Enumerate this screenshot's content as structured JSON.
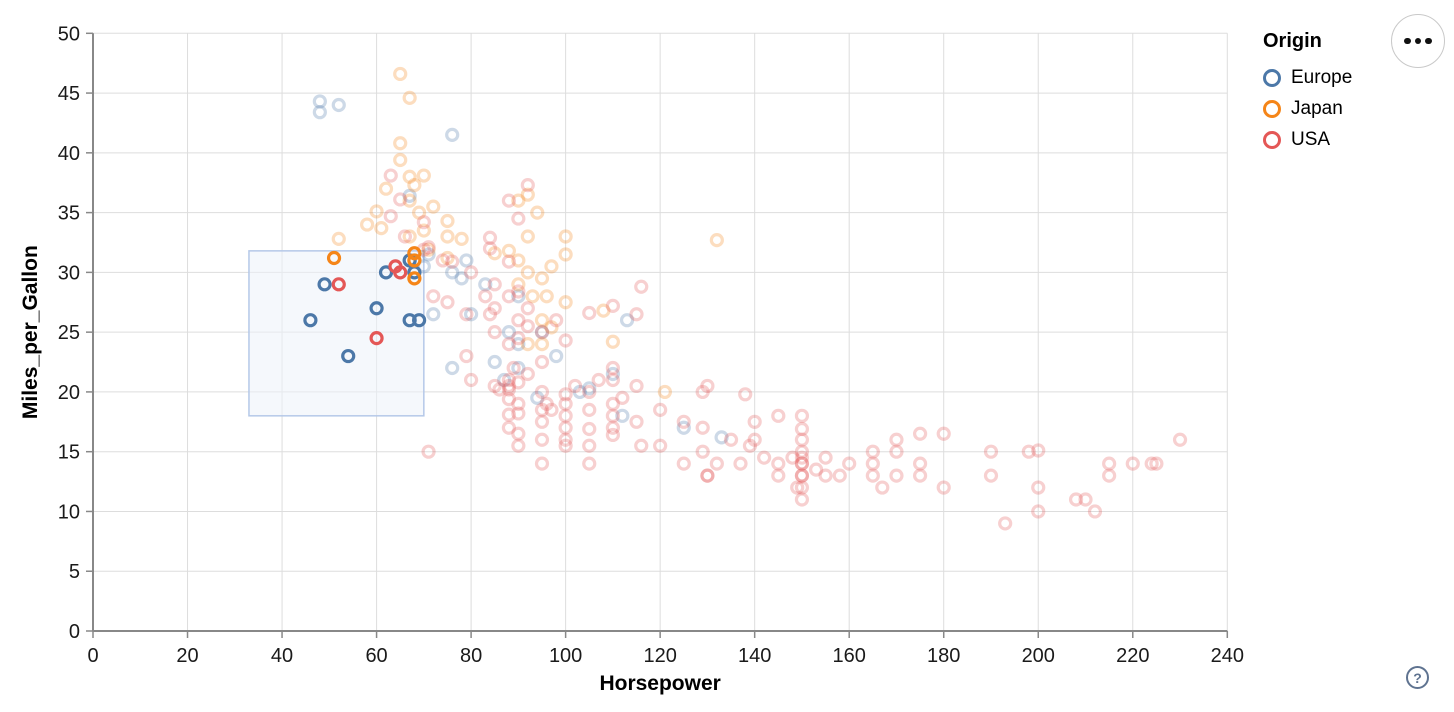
{
  "ui": {
    "actions_button": {
      "icon": "ellipsis-menu"
    },
    "help_button": {
      "glyph": "?"
    }
  },
  "chart_data": {
    "type": "scatter",
    "title": "",
    "xlabel": "Horsepower",
    "ylabel": "Miles_per_Gallon",
    "xlim": [
      0,
      240
    ],
    "ylim": [
      0,
      50
    ],
    "x_ticks": [
      0,
      20,
      40,
      60,
      80,
      100,
      120,
      140,
      160,
      180,
      200,
      220,
      240
    ],
    "y_ticks": [
      0,
      5,
      10,
      15,
      20,
      25,
      30,
      35,
      40,
      45,
      50
    ],
    "grid": true,
    "marker": "open-circle",
    "legend": {
      "title": "Origin",
      "position": "top-right",
      "entries": [
        {
          "label": "Europe",
          "color": "#4c78a8"
        },
        {
          "label": "Japan",
          "color": "#f58518"
        },
        {
          "label": "USA",
          "color": "#e45756"
        }
      ]
    },
    "brush_selection": {
      "horsepower": [
        33,
        70
      ],
      "mpg": [
        18,
        31.8
      ],
      "fill": "#edf2fa",
      "fill_opacity": 0.55,
      "border": "#b5c8e8"
    },
    "point_opacity": {
      "selected": 1,
      "unselected": 0.28
    },
    "colors": {
      "grid": "#dddddd",
      "axis": "#888888",
      "tick_label": "#1a1a1a",
      "axis_title": "#000000"
    },
    "series": [
      {
        "name": "Europe",
        "color": "#4c78a8",
        "selected": [
          [
            46,
            26
          ],
          [
            49,
            29
          ],
          [
            54,
            23
          ],
          [
            60,
            27
          ],
          [
            62,
            30
          ],
          [
            67,
            31
          ],
          [
            68,
            30
          ],
          [
            67,
            26
          ],
          [
            69,
            26
          ]
        ],
        "unselected": [
          [
            48,
            44.3
          ],
          [
            48,
            43.4
          ],
          [
            52,
            44
          ],
          [
            76,
            41.5
          ],
          [
            67,
            36.4
          ],
          [
            71,
            31.5
          ],
          [
            70,
            30.5
          ],
          [
            78,
            29.5
          ],
          [
            83,
            29
          ],
          [
            79,
            31
          ],
          [
            88,
            25
          ],
          [
            90,
            24
          ],
          [
            95,
            25
          ],
          [
            113,
            26
          ],
          [
            90,
            28
          ],
          [
            76,
            30
          ],
          [
            112,
            18
          ],
          [
            76,
            22
          ],
          [
            87,
            21
          ],
          [
            90,
            22
          ],
          [
            110,
            21.5
          ],
          [
            125,
            17
          ],
          [
            133,
            16.2
          ],
          [
            103,
            20
          ],
          [
            98,
            23
          ],
          [
            80,
            26.5
          ],
          [
            72,
            26.5
          ],
          [
            94,
            19.5
          ],
          [
            85,
            22.5
          ],
          [
            105,
            20.3
          ]
        ]
      },
      {
        "name": "Japan",
        "color": "#f58518",
        "selected": [
          [
            51,
            31.2
          ],
          [
            68,
            31.6
          ],
          [
            68,
            31
          ],
          [
            68,
            29.5
          ]
        ],
        "unselected": [
          [
            65,
            46.6
          ],
          [
            67,
            44.6
          ],
          [
            65,
            40.8
          ],
          [
            52,
            32.8
          ],
          [
            60,
            35.1
          ],
          [
            58,
            34
          ],
          [
            61,
            33.7
          ],
          [
            67,
            38
          ],
          [
            62,
            37
          ],
          [
            68,
            37.3
          ],
          [
            65,
            39.4
          ],
          [
            70,
            38.1
          ],
          [
            67,
            36
          ],
          [
            69,
            35
          ],
          [
            72,
            35.5
          ],
          [
            75,
            34.3
          ],
          [
            70,
            33.5
          ],
          [
            67,
            33
          ],
          [
            78,
            32.8
          ],
          [
            75,
            33
          ],
          [
            92,
            33
          ],
          [
            100,
            33
          ],
          [
            132,
            32.7
          ],
          [
            88,
            31.8
          ],
          [
            85,
            31.6
          ],
          [
            90,
            31
          ],
          [
            92,
            30
          ],
          [
            97,
            30.5
          ],
          [
            95,
            29.5
          ],
          [
            90,
            29
          ],
          [
            93,
            28
          ],
          [
            100,
            27.5
          ],
          [
            108,
            26.8
          ],
          [
            95,
            26
          ],
          [
            97,
            25.4
          ],
          [
            110,
            24.2
          ],
          [
            95,
            24
          ],
          [
            92,
            24
          ],
          [
            96,
            28
          ],
          [
            100,
            31.5
          ],
          [
            90,
            36
          ],
          [
            92,
            36.5
          ],
          [
            94,
            35
          ],
          [
            75,
            31.2
          ],
          [
            71,
            31.9
          ],
          [
            121,
            20
          ]
        ]
      },
      {
        "name": "USA",
        "color": "#e45756",
        "selected": [
          [
            52,
            29
          ],
          [
            60,
            24.5
          ],
          [
            64,
            30.5
          ],
          [
            65,
            30
          ]
        ],
        "unselected": [
          [
            63,
            38.1
          ],
          [
            65,
            36.1
          ],
          [
            70,
            34.2
          ],
          [
            84,
            32.9
          ],
          [
            90,
            34.5
          ],
          [
            88,
            36
          ],
          [
            92,
            37.3
          ],
          [
            63,
            34.7
          ],
          [
            66,
            33
          ],
          [
            70,
            31.9
          ],
          [
            76,
            30.9
          ],
          [
            84,
            32
          ],
          [
            74,
            31
          ],
          [
            80,
            30
          ],
          [
            71,
            32.1
          ],
          [
            72,
            28
          ],
          [
            75,
            27.5
          ],
          [
            79,
            26.5
          ],
          [
            83,
            28
          ],
          [
            85,
            29
          ],
          [
            88,
            30.9
          ],
          [
            88,
            28
          ],
          [
            85,
            27
          ],
          [
            90,
            28.4
          ],
          [
            92,
            27
          ],
          [
            90,
            26
          ],
          [
            84,
            26.5
          ],
          [
            85,
            25
          ],
          [
            88,
            24
          ],
          [
            90,
            24.5
          ],
          [
            92,
            25.5
          ],
          [
            95,
            25
          ],
          [
            98,
            26
          ],
          [
            100,
            24.3
          ],
          [
            105,
            26.6
          ],
          [
            110,
            27.2
          ],
          [
            116,
            28.8
          ],
          [
            115,
            26.5
          ],
          [
            79,
            23
          ],
          [
            80,
            21
          ],
          [
            85,
            20.5
          ],
          [
            86,
            20.2
          ],
          [
            88,
            21
          ],
          [
            88,
            20.5
          ],
          [
            88,
            20.2
          ],
          [
            88,
            19.4
          ],
          [
            88,
            18.1
          ],
          [
            89,
            22
          ],
          [
            90,
            20.8
          ],
          [
            90,
            19
          ],
          [
            90,
            18.2
          ],
          [
            92,
            21.5
          ],
          [
            95,
            22.5
          ],
          [
            95,
            20
          ],
          [
            95,
            18.5
          ],
          [
            96,
            19
          ],
          [
            97,
            18.5
          ],
          [
            100,
            19.8
          ],
          [
            100,
            19
          ],
          [
            100,
            18
          ],
          [
            102,
            20.5
          ],
          [
            105,
            20
          ],
          [
            105,
            18.5
          ],
          [
            107,
            21
          ],
          [
            110,
            22
          ],
          [
            110,
            21
          ],
          [
            110,
            19
          ],
          [
            110,
            18
          ],
          [
            112,
            19.5
          ],
          [
            115,
            20.5
          ],
          [
            120,
            18.5
          ],
          [
            129,
            20
          ],
          [
            130,
            20.5
          ],
          [
            138,
            19.8
          ],
          [
            145,
            18
          ],
          [
            150,
            18
          ],
          [
            88,
            17
          ],
          [
            90,
            16.5
          ],
          [
            90,
            15.5
          ],
          [
            95,
            17.5
          ],
          [
            95,
            16
          ],
          [
            100,
            17
          ],
          [
            100,
            16
          ],
          [
            100,
            15.5
          ],
          [
            105,
            16.9
          ],
          [
            105,
            15.5
          ],
          [
            105,
            14
          ],
          [
            110,
            17
          ],
          [
            110,
            16.4
          ],
          [
            115,
            17.5
          ],
          [
            116,
            15.5
          ],
          [
            120,
            15.5
          ],
          [
            125,
            17.5
          ],
          [
            125,
            14
          ],
          [
            129,
            17
          ],
          [
            129,
            15
          ],
          [
            130,
            13
          ],
          [
            130,
            13
          ],
          [
            132,
            14
          ],
          [
            135,
            16
          ],
          [
            137,
            14
          ],
          [
            139,
            15.5
          ],
          [
            140,
            17.5
          ],
          [
            140,
            16
          ],
          [
            142,
            14.5
          ],
          [
            145,
            14
          ],
          [
            145,
            13
          ],
          [
            148,
            14.5
          ],
          [
            149,
            12
          ],
          [
            150,
            16.9
          ],
          [
            150,
            16
          ],
          [
            150,
            15
          ],
          [
            150,
            14.5
          ],
          [
            150,
            14
          ],
          [
            150,
            14
          ],
          [
            150,
            13
          ],
          [
            150,
            13
          ],
          [
            150,
            12
          ],
          [
            150,
            11
          ],
          [
            153,
            13.5
          ],
          [
            155,
            14.5
          ],
          [
            155,
            13
          ],
          [
            158,
            13
          ],
          [
            160,
            14
          ],
          [
            165,
            15
          ],
          [
            165,
            14
          ],
          [
            165,
            13
          ],
          [
            167,
            12
          ],
          [
            170,
            16
          ],
          [
            170,
            15
          ],
          [
            170,
            13
          ],
          [
            175,
            16.5
          ],
          [
            175,
            14
          ],
          [
            175,
            13
          ],
          [
            180,
            16.5
          ],
          [
            180,
            12
          ],
          [
            190,
            15
          ],
          [
            190,
            13
          ],
          [
            193,
            9
          ],
          [
            198,
            15
          ],
          [
            200,
            12
          ],
          [
            200,
            15.1
          ],
          [
            200,
            10
          ],
          [
            208,
            11
          ],
          [
            210,
            11
          ],
          [
            212,
            10
          ],
          [
            215,
            14
          ],
          [
            215,
            13
          ],
          [
            220,
            14
          ],
          [
            224,
            14
          ],
          [
            225,
            14
          ],
          [
            230,
            16
          ],
          [
            71,
            15
          ],
          [
            95,
            14
          ]
        ]
      }
    ]
  }
}
